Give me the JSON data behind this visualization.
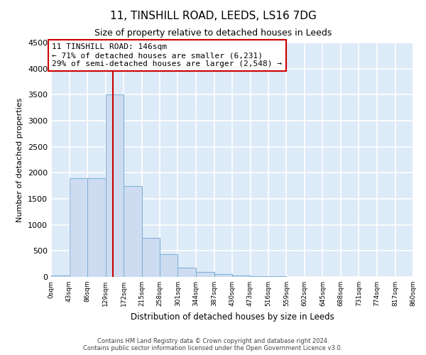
{
  "title_line1": "11, TINSHILL ROAD, LEEDS, LS16 7DG",
  "title_line2": "Size of property relative to detached houses in Leeds",
  "xlabel": "Distribution of detached houses by size in Leeds",
  "ylabel": "Number of detached properties",
  "annotation_line1": "11 TINSHILL ROAD: 146sqm",
  "annotation_line2": "← 71% of detached houses are smaller (6,231)",
  "annotation_line3": "29% of semi-detached houses are larger (2,548) →",
  "property_size": 146,
  "bin_edges": [
    0,
    43,
    86,
    129,
    172,
    215,
    258,
    301,
    344,
    387,
    430,
    473,
    516,
    559,
    602,
    645,
    688,
    731,
    774,
    817,
    860
  ],
  "bar_heights": [
    30,
    1900,
    1900,
    3500,
    1750,
    750,
    430,
    175,
    100,
    50,
    30,
    20,
    10,
    0,
    0,
    0,
    0,
    0,
    0,
    0
  ],
  "bar_color": "#cddcf0",
  "bar_edge_color": "#7aaed6",
  "vline_color": "#cc0000",
  "vline_x": 146,
  "ylim": [
    0,
    4500
  ],
  "yticks": [
    0,
    500,
    1000,
    1500,
    2000,
    2500,
    3000,
    3500,
    4000,
    4500
  ],
  "background_color": "#ddeaf8",
  "grid_color": "#ffffff",
  "footer_line1": "Contains HM Land Registry data © Crown copyright and database right 2024.",
  "footer_line2": "Contains public sector information licensed under the Open Government Licence v3.0."
}
